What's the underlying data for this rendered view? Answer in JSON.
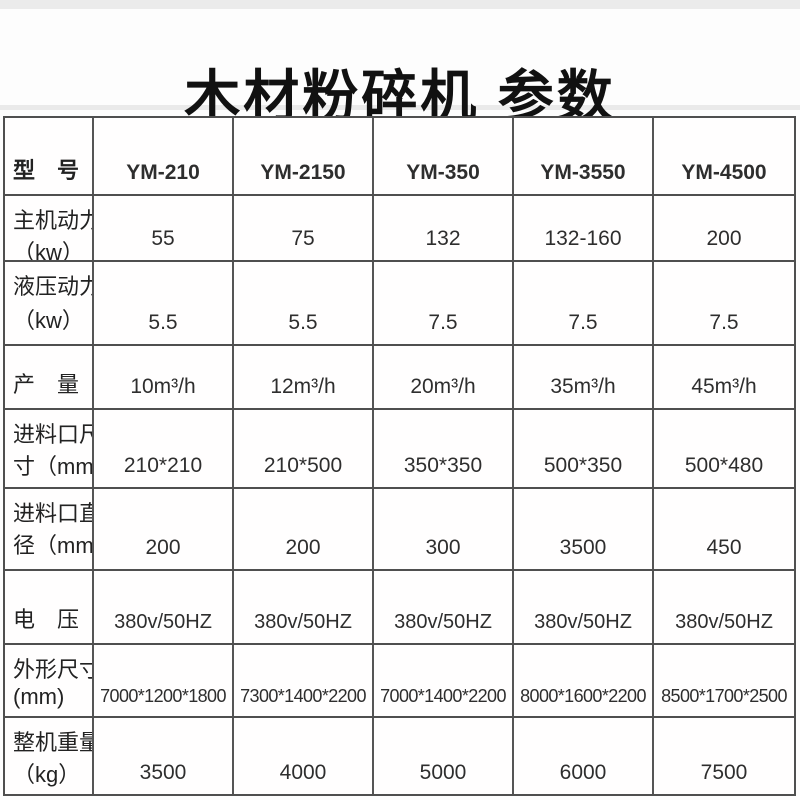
{
  "title": "木材粉碎机  参数",
  "accent_colors": {
    "border": "#4f4f4f",
    "text": "#1f1f1f",
    "background": "#fdfdfd"
  },
  "table": {
    "models_row": {
      "label": "型　号",
      "values": [
        "YM-210",
        "YM-2150",
        "YM-350",
        "YM-3550",
        "YM-4500"
      ]
    },
    "rows": [
      {
        "name": "main-power",
        "label1": "主机动力",
        "label2": "（kw）",
        "values": [
          "55",
          "75",
          "132",
          "132-160",
          "200"
        ]
      },
      {
        "name": "hydraulic-power",
        "label1": "液压动力",
        "label2": "（kw）",
        "values": [
          "5.5",
          "5.5",
          "7.5",
          "7.5",
          "7.5"
        ]
      },
      {
        "name": "output",
        "label1": "产　量",
        "label2": "",
        "values": [
          "10m³/h",
          "12m³/h",
          "20m³/h",
          "35m³/h",
          "45m³/h"
        ]
      },
      {
        "name": "inlet-size",
        "label1": "进料口尺",
        "label2": "寸（mm）",
        "values": [
          "210*210",
          "210*500",
          "350*350",
          "500*350",
          "500*480"
        ]
      },
      {
        "name": "inlet-diameter",
        "label1": "进料口直",
        "label2": "径（mm）",
        "values": [
          "200",
          "200",
          "300",
          "3500",
          "450"
        ]
      },
      {
        "name": "voltage",
        "label1": "电　压",
        "label2": "",
        "values": [
          "380v/50HZ",
          "380v/50HZ",
          "380v/50HZ",
          "380v/50HZ",
          "380v/50HZ"
        ]
      },
      {
        "name": "dimensions",
        "label1": "外形尺寸",
        "label2": "(mm)",
        "values": [
          "7000*1200*1800",
          "7300*1400*2200",
          "7000*1400*2200",
          "8000*1600*2200",
          "8500*1700*2500"
        ]
      },
      {
        "name": "weight",
        "label1": "整机重量",
        "label2": "（kg）",
        "values": [
          "3500",
          "4000",
          "5000",
          "6000",
          "7500"
        ]
      }
    ]
  }
}
